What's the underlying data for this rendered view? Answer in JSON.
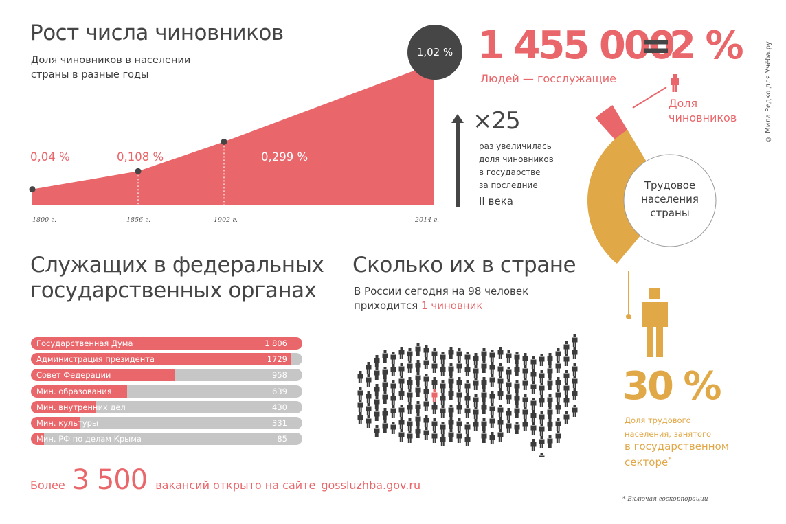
{
  "growth": {
    "title": "Рост числа чиновников",
    "subtitle_line1": "Доля чиновников в населении",
    "subtitle_line2": "страны в разные годы"
  },
  "chart_data": [
    {
      "type": "area",
      "title": "Рост числа чиновников",
      "subtitle": "Доля чиновников в населении страны в разные годы",
      "x": [
        "1800 г.",
        "1856 г.",
        "1902 г.",
        "2014 г."
      ],
      "values": [
        0.04,
        0.108,
        0.299,
        1.02
      ],
      "labels": [
        "0,04 %",
        "0,108 %",
        "0,299 %",
        "1,02 %"
      ],
      "color": "#e9666a"
    },
    {
      "type": "bar",
      "title": "Служащих в федеральных государственных органах",
      "categories": [
        "Государственная Дума",
        "Администрация президента",
        "Совет Федерации",
        "Мин. образования",
        "Мин. внутренних дел",
        "Мин. культуры",
        "Мин. РФ по делам Крыма"
      ],
      "values": [
        1806,
        1729,
        958,
        639,
        430,
        331,
        85
      ],
      "value_labels": [
        "1 806",
        "1729",
        "958",
        "639",
        "430",
        "331",
        "85"
      ],
      "orientation": "horizontal",
      "color": "#e9666a",
      "track_color": "#c6c6c6"
    },
    {
      "type": "pie",
      "center_label": "Трудовое населения страны",
      "slices": [
        {
          "label": "Доля чиновников",
          "value": 2,
          "color": "#e9666a"
        },
        {
          "label": "Доля трудового населения, занятого в государственном секторе*",
          "value": 30,
          "color": "#e1a848"
        }
      ]
    }
  ],
  "multiplier": {
    "value": "×25",
    "text_lines": [
      "раз увеличилась",
      "доля чиновников",
      "в государстве",
      "за последние"
    ],
    "period": "II века"
  },
  "officials": {
    "count": "1 455 000",
    "equals": "=",
    "percent": "2 %",
    "caption": "Людей — госслужащие",
    "share_label_line1": "Доля",
    "share_label_line2": "чиновников"
  },
  "pie_center": {
    "line1": "Трудовое",
    "line2": "населения",
    "line3": "страны"
  },
  "public_sector": {
    "percent": "30 %",
    "line1": "Доля трудового",
    "line2": "населения, занятого",
    "line3": "в государственном",
    "line4": "секторе",
    "asterisk": "*",
    "footnote": "* Включая госкорпорации"
  },
  "federal": {
    "title_line1": "Служащих в федеральных",
    "title_line2": "государственных органах"
  },
  "country": {
    "title": "Сколько их в стране",
    "line1": "В России сегодня на 98 человек",
    "line2_prefix": "приходится",
    "line2_highlight": "1 чиновник"
  },
  "vacancies": {
    "prefix": "Более",
    "number": "3 500",
    "text": "вакансий открыто на сайте",
    "link": "gossluzhba.gov.ru"
  },
  "credit": "© Мила Редко для Учёба.ру",
  "colors": {
    "red": "#e9666a",
    "gold": "#e1a848",
    "dark": "#454545",
    "gray_track": "#c6c6c6"
  }
}
